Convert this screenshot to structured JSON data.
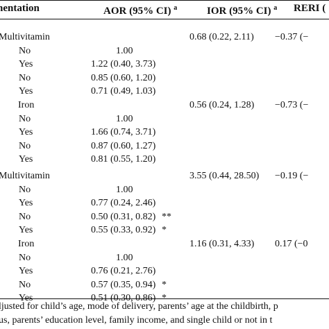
{
  "table": {
    "headers": {
      "supplementation": "nentation",
      "aor": "AOR (95% CI)",
      "aor_sup": "a",
      "ior": "IOR (95% CI)",
      "ior_sup": "a",
      "reri": "RERI ("
    },
    "sections": [
      {
        "groups": [
          {
            "name": "Multivitamin",
            "ior": "0.68 (0.22, 2.11)",
            "reri": "−0.37 (−",
            "rows": [
              {
                "level": "No",
                "aor": "1.00",
                "sig": ""
              },
              {
                "level": "Yes",
                "aor": "1.22 (0.40, 3.73)",
                "sig": ""
              },
              {
                "level": "No",
                "aor": "0.85 (0.60, 1.20)",
                "sig": ""
              },
              {
                "level": "Yes",
                "aor": "0.71 (0.49, 1.03)",
                "sig": ""
              }
            ]
          },
          {
            "name": "Iron",
            "ior": "0.56 (0.24, 1.28)",
            "reri": "−0.73 (−",
            "rows": [
              {
                "level": "No",
                "aor": "1.00",
                "sig": ""
              },
              {
                "level": "Yes",
                "aor": "1.66 (0.74, 3.71)",
                "sig": ""
              },
              {
                "level": "No",
                "aor": "0.87 (0.60, 1.27)",
                "sig": ""
              },
              {
                "level": "Yes",
                "aor": "0.81 (0.55, 1.20)",
                "sig": ""
              }
            ]
          }
        ]
      },
      {
        "groups": [
          {
            "name": "Multivitamin",
            "ior": "3.55 (0.44, 28.50)",
            "reri": "−0.19 (−",
            "rows": [
              {
                "level": "No",
                "aor": "1.00",
                "sig": ""
              },
              {
                "level": "Yes",
                "aor": "0.77 (0.24, 2.46)",
                "sig": ""
              },
              {
                "level": "No",
                "aor": "0.50 (0.31, 0.82)",
                "sig": "**"
              },
              {
                "level": "Yes",
                "aor": "0.55 (0.33, 0.92)",
                "sig": "*"
              }
            ]
          },
          {
            "name": "Iron",
            "ior": "1.16 (0.31, 4.33)",
            "reri": "0.17 (−0",
            "rows": [
              {
                "level": "No",
                "aor": "1.00",
                "sig": ""
              },
              {
                "level": "Yes",
                "aor": "0.76 (0.21, 2.76)",
                "sig": ""
              },
              {
                "level": "No",
                "aor": "0.57 (0.35, 0.94)",
                "sig": "*"
              },
              {
                "level": "Yes",
                "aor": "0.51 (0.30, 0.86)",
                "sig": "*"
              }
            ]
          }
        ]
      }
    ],
    "footnotes": [
      "ljusted for child’s age, mode of delivery, parents’ age at the childbirth, p",
      "us, parents’ education level, family income, and single child or not in t"
    ]
  }
}
